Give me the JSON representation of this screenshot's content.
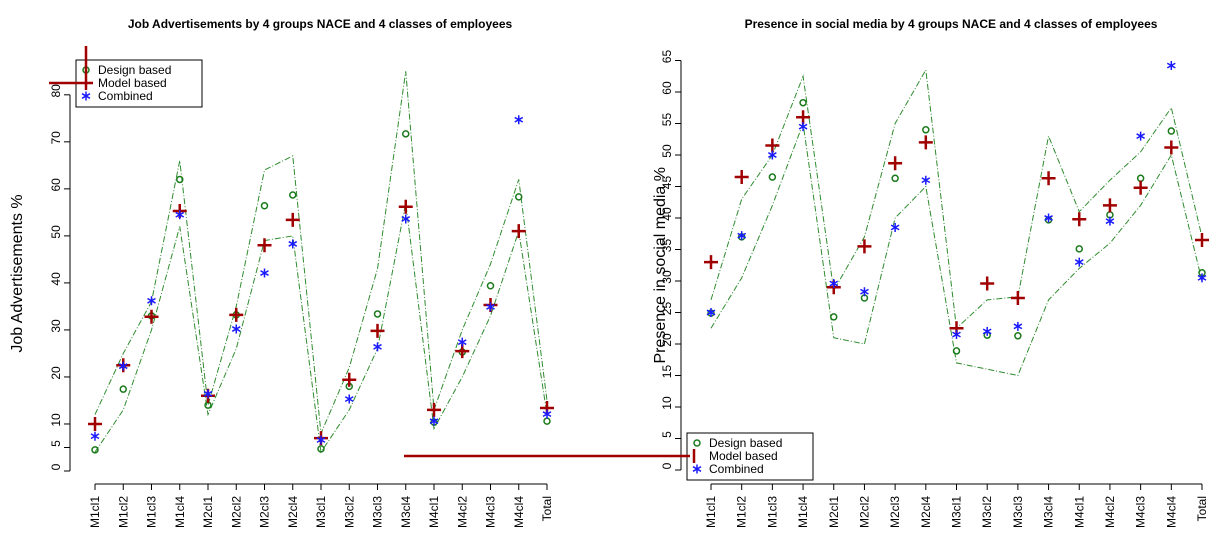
{
  "chart_data": [
    {
      "type": "scatter",
      "title": "Job Advertisements by 4 groups NACE and 4 classes of employees",
      "y_label": "Job Advertisements %",
      "categories": [
        "M1cl1",
        "M1cl2",
        "M1cl3",
        "M1cl4",
        "M2cl1",
        "M2cl2",
        "M2cl3",
        "M2cl4",
        "M3cl1",
        "M3cl2",
        "M3cl3",
        "M3cl4",
        "M4cl1",
        "M4cl2",
        "M4cl3",
        "M4cl4",
        "Total"
      ],
      "series": [
        {
          "name": "Design based",
          "color": "#1a7a1a",
          "marker": "circle",
          "values": [
            4.5,
            17.4,
            33,
            62,
            14,
            33.2,
            56.4,
            58.7,
            4.7,
            18,
            33.4,
            71.7,
            10.4,
            25.3,
            39.4,
            58.3,
            10.6
          ]
        },
        {
          "name": "Model based",
          "color": "#a00000",
          "marker": "plus",
          "values": [
            10,
            22.5,
            32.8,
            55.3,
            16,
            33.2,
            48,
            53.4,
            7,
            19.4,
            29.8,
            56.2,
            13,
            25.5,
            35.3,
            51,
            13.4
          ]
        },
        {
          "name": "Combined",
          "color": "#1a1aff",
          "marker": "star",
          "values": [
            7.4,
            22.3,
            36.2,
            54.5,
            16.4,
            30.2,
            42.1,
            48.3,
            6.6,
            15.3,
            26.4,
            53.6,
            10.6,
            27.4,
            34.9,
            74.7,
            12.1
          ]
        }
      ],
      "bands": {
        "color": "#2e8b2e",
        "upper": [
          12,
          25,
          36,
          66,
          14,
          35,
          64,
          67,
          8,
          22,
          43,
          85,
          13,
          30,
          44,
          62,
          15
        ],
        "lower": [
          4,
          13,
          30,
          52,
          12,
          26,
          49,
          50,
          4,
          13,
          26,
          57,
          9,
          20,
          33,
          51,
          12
        ]
      },
      "ylim": [
        0,
        84
      ],
      "yticks": [
        0,
        5,
        10,
        20,
        30,
        40,
        50,
        60,
        70,
        80
      ],
      "legend": "top-left"
    },
    {
      "type": "scatter",
      "title": "Presence in social media by 4 groups NACE and 4 classes of employees",
      "y_label": "Presence in social media %",
      "categories": [
        "M1cl1",
        "M1cl2",
        "M1cl3",
        "M1cl4",
        "M2cl1",
        "M2cl2",
        "M2cl3",
        "M2cl4",
        "M3cl1",
        "M3cl2",
        "M3cl3",
        "M3cl4",
        "M4cl1",
        "M4cl2",
        "M4cl3",
        "M4cl4",
        "Total"
      ],
      "series": [
        {
          "name": "Design based",
          "color": "#1a7a1a",
          "marker": "circle",
          "values": [
            24.9,
            37,
            46.5,
            58.3,
            24.3,
            27.3,
            46.3,
            54,
            18.9,
            21.4,
            21.3,
            39.7,
            35.1,
            40.5,
            46.3,
            53.8,
            31.3
          ]
        },
        {
          "name": "Model based",
          "color": "#a00000",
          "marker": "plus",
          "values": [
            33,
            46.5,
            51.5,
            56,
            29,
            35.5,
            48.7,
            52,
            22.5,
            29.6,
            27.3,
            46.3,
            39.8,
            42,
            44.8,
            51.2,
            36.5
          ]
        },
        {
          "name": "Combined",
          "color": "#1a1aff",
          "marker": "star",
          "values": [
            25,
            37.2,
            50,
            54.5,
            29.6,
            28.3,
            38.5,
            46,
            21.5,
            22,
            22.8,
            40,
            33,
            39.5,
            53,
            64.2,
            30.5
          ]
        }
      ],
      "bands": {
        "color": "#2e8b2e",
        "upper": [
          27,
          43,
          50,
          62.5,
          28.5,
          37,
          55,
          63.5,
          22.5,
          27,
          27.5,
          53,
          41,
          46,
          50.5,
          57.5,
          37
        ],
        "lower": [
          22.5,
          30.5,
          42,
          55,
          21,
          20,
          40,
          45,
          17,
          16,
          15,
          27,
          32,
          36,
          42,
          50,
          30
        ]
      },
      "ylim": [
        0,
        65
      ],
      "yticks": [
        0,
        5,
        10,
        15,
        20,
        25,
        30,
        35,
        40,
        45,
        50,
        55,
        60,
        65
      ],
      "legend": "bottom-left"
    }
  ]
}
